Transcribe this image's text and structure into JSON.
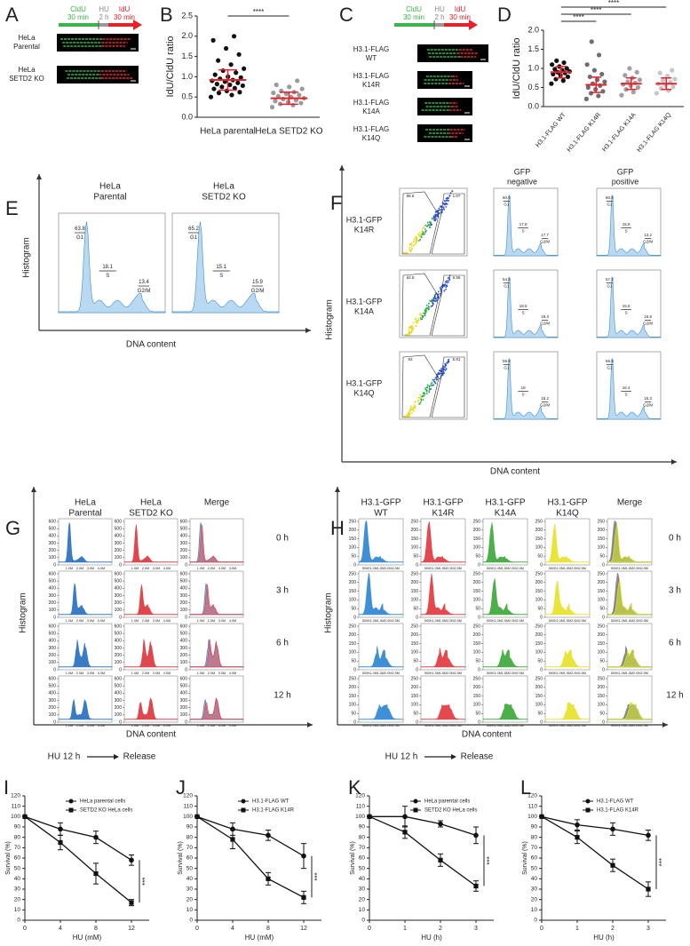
{
  "panels": {
    "A": {
      "letter": "A",
      "schematic": {
        "cldu": "CldU",
        "cldu_time": "30 min",
        "hu": "HU",
        "hu_time": "2 h",
        "idu": "IdU",
        "idu_time": "30 min"
      },
      "rows": [
        [
          "HeLa",
          "Parental"
        ],
        [
          "HeLa",
          "SETD2 KO"
        ]
      ]
    },
    "C": {
      "letter": "C",
      "schematic": {
        "cldu": "CldU",
        "cldu_time": "30 min",
        "hu": "HU",
        "hu_time": "2 h",
        "idu": "IdU",
        "idu_time": "30 min"
      },
      "rows": [
        [
          "H3.1-FLAG",
          "WT"
        ],
        [
          "H3.1-FLAG",
          "K14R"
        ],
        [
          "H3.1-FLAG",
          "K14A"
        ],
        [
          "H3.1-FLAG",
          "K14Q"
        ]
      ]
    },
    "E": {
      "letter": "E",
      "y_label": "Histogram",
      "x_label": "DNA content",
      "phases": [
        "G1",
        "S",
        "G2/M"
      ],
      "columns": [
        {
          "title": [
            "HeLa",
            "Parental"
          ],
          "gates": [
            63.8,
            18.1,
            13.4
          ]
        },
        {
          "title": [
            "HeLa",
            "SETD2 KO"
          ],
          "gates": [
            65.2,
            15.1,
            15.9
          ]
        }
      ]
    },
    "F": {
      "letter": "F",
      "y_label": "Histogram",
      "x_label": "DNA content",
      "phases": [
        "G1",
        "S",
        "G2/M"
      ],
      "columns": [
        [
          "GFP",
          "negative"
        ],
        [
          "GFP",
          "positive"
        ]
      ],
      "rows": [
        {
          "label": [
            "H3.1-GFP",
            "K14R"
          ],
          "scatter_gates": [
            98.6,
            1.07
          ],
          "negative": [
            60.5,
            17.8,
            17.7
          ],
          "positive": [
            60.9,
            15.8,
            13.2
          ]
        },
        {
          "label": [
            "H3.1-GFP",
            "K14A"
          ],
          "scatter_gates": [
            92.8,
            6.56
          ],
          "negative": [
            54.6,
            18.5,
            19.3
          ],
          "positive": [
            57.2,
            15.5,
            15.6
          ]
        },
        {
          "label": [
            "H3.1-GFP",
            "K14Q"
          ],
          "scatter_gates": [
            93.0,
            5.81
          ],
          "negative": [
            58.8,
            18.0,
            18.2
          ],
          "positive": [
            58.9,
            16.4,
            15.3
          ]
        }
      ]
    },
    "G": {
      "letter": "G",
      "y_label": "Histogram",
      "x_label": "DNA content",
      "treatment": "HU 12 h",
      "release": "Release",
      "columns": [
        [
          "HeLa",
          "Parental"
        ],
        [
          "HeLa",
          "SETD2 KO"
        ],
        [
          "Merge"
        ]
      ],
      "times": [
        "0 h",
        "3 h",
        "6 h",
        "12 h"
      ],
      "yticks": [
        0,
        100,
        200,
        300,
        400,
        500,
        600
      ],
      "xticks": [
        "1.0M",
        "2.0M",
        "3.0M",
        "4.0M"
      ]
    },
    "H": {
      "letter": "H",
      "y_label": "Histogram",
      "x_label": "DNA content",
      "treatment": "HU 12 h",
      "release": "Release",
      "columns": [
        [
          "H3.1-GFP",
          "WT"
        ],
        [
          "H3.1-GFP",
          "K14R"
        ],
        [
          "H3.1-GFP",
          "K14A"
        ],
        [
          "H3.1-GFP",
          "K14Q"
        ],
        [
          "Merge"
        ]
      ],
      "times": [
        "0 h",
        "3 h",
        "6 h",
        "12 h"
      ],
      "yticks": [
        0,
        50,
        100,
        150,
        200,
        250
      ],
      "xticks": [
        "500K",
        "1.0M",
        "1.5M",
        "2.0M",
        "2.5M"
      ]
    }
  },
  "chart_data": [
    {
      "type": "strip",
      "letter": "B",
      "y_label": "IdU/CldU ratio",
      "categories": [
        "HeLa parental",
        "HeLa SETD2 KO"
      ],
      "series": [
        {
          "color": "#111111",
          "values": [
            0.5,
            0.55,
            0.6,
            0.62,
            0.65,
            0.7,
            0.72,
            0.75,
            0.78,
            0.8,
            0.82,
            0.85,
            0.88,
            0.9,
            0.92,
            0.95,
            0.98,
            1.0,
            1.05,
            1.1,
            1.15,
            1.2,
            1.3,
            1.4,
            1.55,
            1.7,
            1.9,
            2.0
          ]
        },
        {
          "color": "#9a9a9a",
          "values": [
            0.25,
            0.3,
            0.33,
            0.35,
            0.38,
            0.4,
            0.42,
            0.45,
            0.47,
            0.5,
            0.52,
            0.55,
            0.58,
            0.6,
            0.62,
            0.65,
            0.7,
            0.75,
            0.8,
            0.9
          ]
        }
      ],
      "means": [
        0.92,
        0.47
      ],
      "sd": [
        0.25,
        0.15
      ],
      "mean_color": "#e8202a",
      "ylim": [
        0,
        2.5
      ],
      "yticks": [
        {
          "value": 0,
          "label": "0.0"
        },
        0.5,
        {
          "value": 1,
          "label": "1.0"
        },
        1.5,
        {
          "value": 2,
          "label": "2.0"
        },
        2.5
      ],
      "comparisons": [
        {
          "label": "****",
          "pair": [
            "HeLa parental",
            "HeLa SETD2 KO"
          ]
        }
      ]
    },
    {
      "type": "strip",
      "letter": "D",
      "y_label": "IdU/CldU ratio",
      "categories": [
        "H3.1-FLAG WT",
        "H3.1-FLAG K14R",
        "H3.1-FLAG K14A",
        "H3.1-FLAG K14Q"
      ],
      "series": [
        {
          "color": "#111111",
          "values": [
            0.6,
            0.68,
            0.72,
            0.78,
            0.82,
            0.85,
            0.88,
            0.9,
            0.92,
            0.95,
            0.98,
            1.0,
            1.05,
            1.1,
            1.15,
            1.2
          ]
        },
        {
          "color": "#6e6e6e",
          "values": [
            0.2,
            0.28,
            0.35,
            0.4,
            0.45,
            0.5,
            0.55,
            0.6,
            0.65,
            0.7,
            0.78,
            0.85,
            0.95,
            1.1,
            1.35,
            1.7
          ]
        },
        {
          "color": "#a0a0a0",
          "values": [
            0.3,
            0.38,
            0.45,
            0.5,
            0.55,
            0.58,
            0.62,
            0.65,
            0.7,
            0.75,
            0.82,
            0.9,
            1.0
          ]
        },
        {
          "color": "#c6c6c6",
          "values": [
            0.35,
            0.42,
            0.48,
            0.52,
            0.56,
            0.6,
            0.64,
            0.68,
            0.72,
            0.8,
            0.88,
            0.95
          ]
        }
      ],
      "means": [
        0.9,
        0.57,
        0.6,
        0.6
      ],
      "sd": [
        0.15,
        0.2,
        0.15,
        0.15
      ],
      "mean_color": "#e8202a",
      "ylim": [
        0,
        2
      ],
      "yticks": [
        {
          "value": 0,
          "label": "0.0"
        },
        0.5,
        {
          "value": 1,
          "label": "1.0"
        },
        1.5,
        {
          "value": 2,
          "label": "2.0"
        }
      ],
      "comparisons": [
        {
          "label": "****",
          "pair": [
            "H3.1-FLAG WT",
            "H3.1-FLAG K14Q"
          ]
        },
        {
          "label": "****",
          "pair": [
            "H3.1-FLAG WT",
            "H3.1-FLAG K14A"
          ]
        },
        {
          "label": "****",
          "pair": [
            "H3.1-FLAG WT",
            "H3.1-FLAG K14R"
          ]
        }
      ]
    },
    {
      "type": "line",
      "letter": "I",
      "x_label": "HU  (mM)",
      "y_label": "Survival (%)",
      "x": [
        0,
        4,
        8,
        12
      ],
      "xlim": [
        0,
        14
      ],
      "xticks": [
        0,
        4,
        8,
        12
      ],
      "ylim": [
        0,
        120
      ],
      "yticks": [
        0,
        10,
        20,
        30,
        40,
        50,
        60,
        70,
        80,
        90,
        100,
        110,
        120
      ],
      "series": [
        {
          "name": "HeLa parental cells",
          "color": "#111111",
          "marker": "circle",
          "values": [
            100,
            88,
            80,
            58
          ],
          "errors": [
            0,
            6,
            6,
            5
          ]
        },
        {
          "name": "SETD2 KO HeLa cells",
          "color": "#111111",
          "marker": "square",
          "values": [
            100,
            75,
            45,
            17
          ],
          "errors": [
            0,
            7,
            10,
            3
          ]
        }
      ],
      "significance": "***"
    },
    {
      "type": "line",
      "letter": "J",
      "x_label": "HU  (mM)",
      "y_label": "Survival (%)",
      "x": [
        0,
        4,
        8,
        12
      ],
      "xlim": [
        0,
        14
      ],
      "xticks": [
        0,
        4,
        8,
        12
      ],
      "ylim": [
        0,
        120
      ],
      "yticks": [
        0,
        10,
        20,
        30,
        40,
        50,
        60,
        70,
        80,
        90,
        100,
        110,
        120
      ],
      "series": [
        {
          "name": "H3.1-FLAG WT",
          "color": "#111111",
          "marker": "circle",
          "values": [
            100,
            88,
            82,
            62
          ],
          "errors": [
            0,
            6,
            5,
            12
          ]
        },
        {
          "name": "H3.1-FLAG K14R",
          "color": "#111111",
          "marker": "square",
          "values": [
            100,
            78,
            40,
            22
          ],
          "errors": [
            0,
            9,
            6,
            6
          ]
        }
      ],
      "significance": "***"
    },
    {
      "type": "line",
      "letter": "K",
      "x_label": "HU  (h)",
      "y_label": "Survival (%)",
      "x": [
        0,
        1,
        2,
        3
      ],
      "xlim": [
        0,
        3.5
      ],
      "xticks": [
        0,
        1,
        2,
        3
      ],
      "ylim": [
        0,
        120
      ],
      "yticks": [
        0,
        10,
        20,
        30,
        40,
        50,
        60,
        70,
        80,
        90,
        100,
        110,
        120
      ],
      "series": [
        {
          "name": "HeLa parental cells",
          "color": "#111111",
          "marker": "circle",
          "values": [
            100,
            100,
            93,
            82
          ],
          "errors": [
            0,
            10,
            3,
            8
          ]
        },
        {
          "name": "SETD2 KO HeLa cells",
          "color": "#111111",
          "marker": "square",
          "values": [
            100,
            85,
            58,
            33
          ],
          "errors": [
            0,
            6,
            6,
            5
          ]
        }
      ],
      "significance": "***"
    },
    {
      "type": "line",
      "letter": "L",
      "x_label": "HU  (h)",
      "y_label": "Survival (%)",
      "x": [
        0,
        1,
        2,
        3
      ],
      "xlim": [
        0,
        3.5
      ],
      "xticks": [
        0,
        1,
        2,
        3
      ],
      "ylim": [
        0,
        120
      ],
      "yticks": [
        0,
        10,
        20,
        30,
        40,
        50,
        60,
        70,
        80,
        90,
        100,
        110,
        120
      ],
      "series": [
        {
          "name": "H3.1-FLAG WT",
          "color": "#111111",
          "marker": "circle",
          "values": [
            100,
            92,
            88,
            82
          ],
          "errors": [
            0,
            5,
            6,
            5
          ]
        },
        {
          "name": "H3.1-FLAG K14R",
          "color": "#111111",
          "marker": "square",
          "values": [
            100,
            80,
            53,
            30
          ],
          "errors": [
            0,
            6,
            6,
            7
          ]
        }
      ],
      "significance": "***"
    }
  ]
}
